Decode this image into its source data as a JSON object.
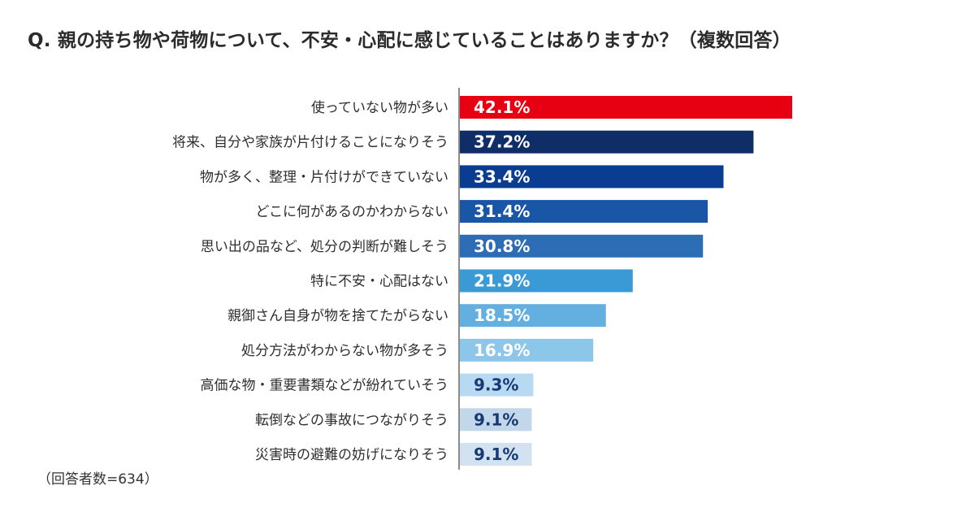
{
  "title": "Q. 親の持ち物や荷物について、不安・心配に感じていることはありますか？（複数回答）",
  "footnote": "（回答者数=634）",
  "chart_data": {
    "type": "bar",
    "orientation": "horizontal",
    "title": "Q. 親の持ち物や荷物について、不安・心配に感じていることはありますか？（複数回答）",
    "unit": "%",
    "categories": [
      "使っていない物が多い",
      "将来、自分や家族が片付けることになりそう",
      "物が多く、整理・片付けができていない",
      "どこに何があるのかわからない",
      "思い出の品など、処分の判断が難しそう",
      "特に不安・心配はない",
      "親御さん自身が物を捨てたがらない",
      "処分方法がわからない物が多そう",
      "高価な物・重要書類などが紛れていそう",
      "転倒などの事故につながりそう",
      "災害時の避難の妨げになりそう"
    ],
    "values": [
      42.1,
      37.2,
      33.4,
      31.4,
      30.8,
      21.9,
      18.5,
      16.9,
      9.3,
      9.1,
      9.1
    ],
    "value_labels": [
      "42.1%",
      "37.2%",
      "33.4%",
      "31.4%",
      "30.8%",
      "21.9%",
      "18.5%",
      "16.9%",
      "9.3%",
      "9.1%",
      "9.1%"
    ],
    "bar_colors": [
      "#e60012",
      "#0f2d66",
      "#0a3d91",
      "#1a56a6",
      "#2d6db5",
      "#3a9ad6",
      "#63afe0",
      "#8cc6e8",
      "#b8d9f2",
      "#c3d7ea",
      "#d2e2f1"
    ],
    "label_colors": [
      "#ffffff",
      "#ffffff",
      "#ffffff",
      "#ffffff",
      "#ffffff",
      "#ffffff",
      "#ffffff",
      "#ffffff",
      "#173a74",
      "#173a74",
      "#173a74"
    ],
    "xlim": [
      0,
      42.1
    ],
    "grid": false,
    "legend": "none"
  }
}
